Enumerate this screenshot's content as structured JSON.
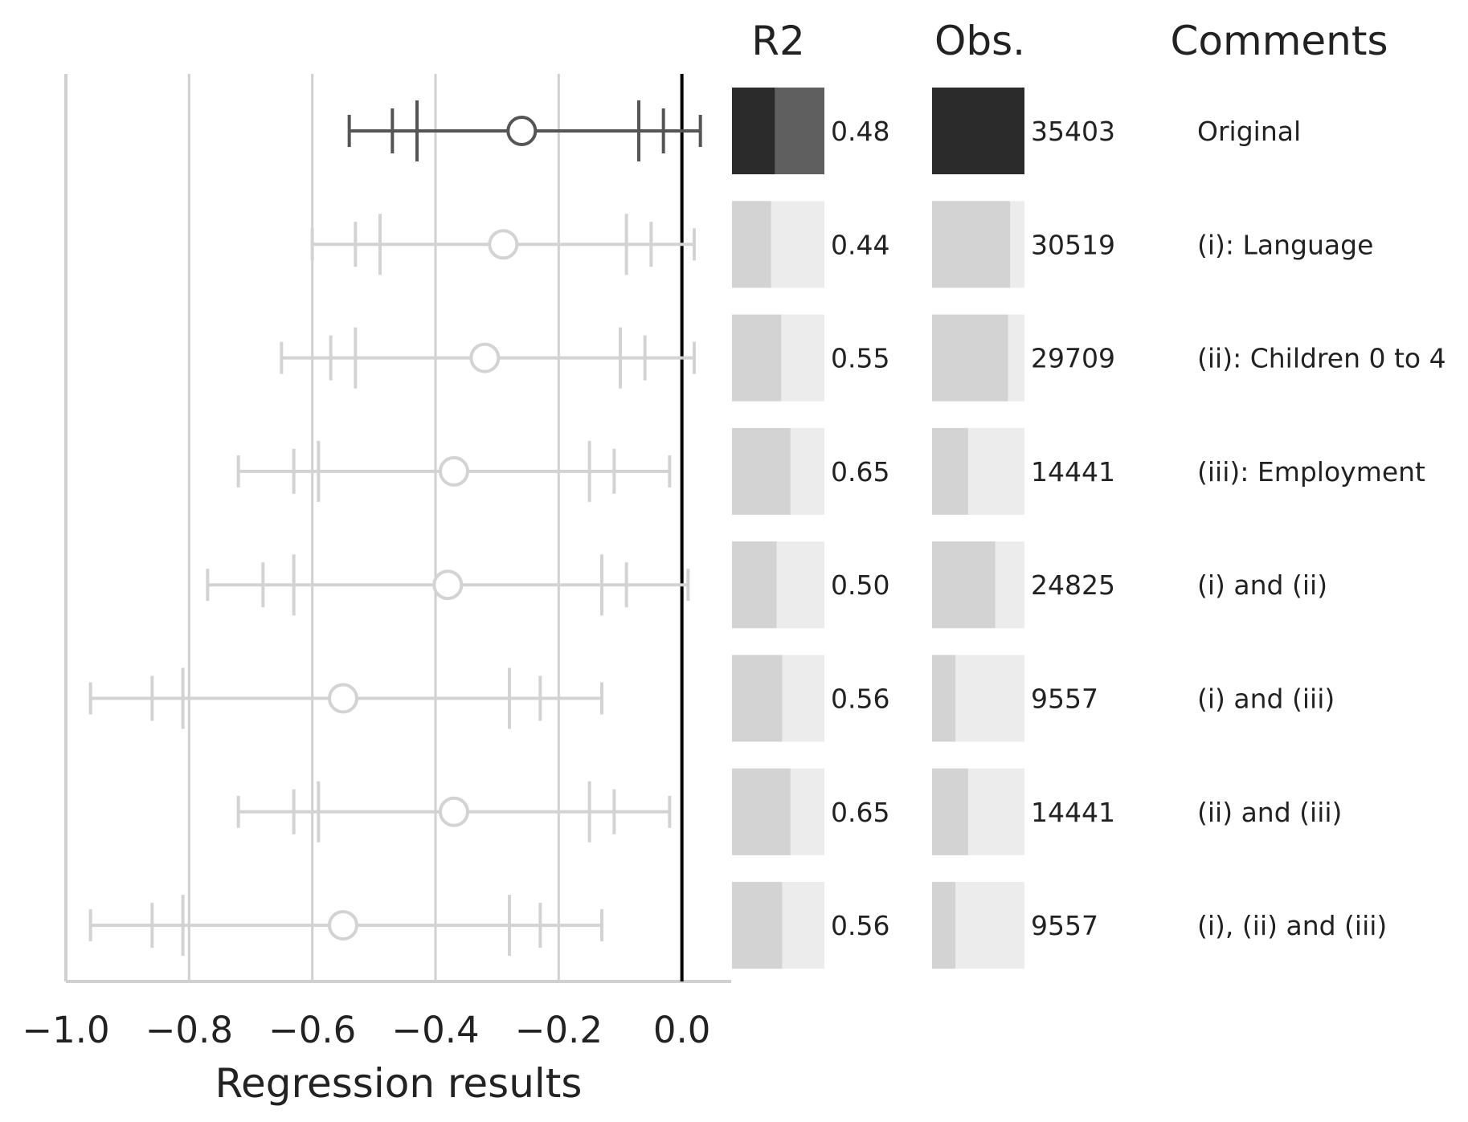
{
  "chart_data": {
    "type": "forest",
    "xlabel": "Regression results",
    "xlim": [
      -1.0,
      0.08
    ],
    "x_ticks": [
      -1.0,
      -0.8,
      -0.6,
      -0.4,
      -0.2,
      0.0
    ],
    "x_tick_labels": [
      "−1.0",
      "−0.8",
      "−0.6",
      "−0.4",
      "−0.2",
      "0.0"
    ],
    "reference_line": 0.0,
    "vertical_grid": true,
    "columns": {
      "r2_header": "R2",
      "obs_header": "Obs.",
      "comments_header": "Comments"
    },
    "obs_max": 35403,
    "rows": [
      {
        "comment": "Original",
        "estimate": -0.26,
        "ci_inner": [
          -0.43,
          -0.07
        ],
        "ci_mid": [
          -0.47,
          -0.03
        ],
        "ci_outer": [
          -0.54,
          0.03
        ],
        "r2": 0.48,
        "r2_label": "0.48",
        "obs": 35403,
        "obs_label": "35403",
        "highlight": true
      },
      {
        "comment": "(i): Language",
        "estimate": -0.29,
        "ci_inner": [
          -0.49,
          -0.09
        ],
        "ci_mid": [
          -0.53,
          -0.05
        ],
        "ci_outer": [
          -0.6,
          0.02
        ],
        "r2": 0.44,
        "r2_label": "0.44",
        "obs": 30519,
        "obs_label": "30519",
        "highlight": false
      },
      {
        "comment": "(ii): Children 0 to 4",
        "estimate": -0.32,
        "ci_inner": [
          -0.53,
          -0.1
        ],
        "ci_mid": [
          -0.57,
          -0.06
        ],
        "ci_outer": [
          -0.65,
          0.02
        ],
        "r2": 0.55,
        "r2_label": "0.55",
        "obs": 29709,
        "obs_label": "29709",
        "highlight": false
      },
      {
        "comment": "(iii): Employment",
        "estimate": -0.37,
        "ci_inner": [
          -0.59,
          -0.15
        ],
        "ci_mid": [
          -0.63,
          -0.11
        ],
        "ci_outer": [
          -0.72,
          -0.02
        ],
        "r2": 0.65,
        "r2_label": "0.65",
        "obs": 14441,
        "obs_label": "14441",
        "highlight": false
      },
      {
        "comment": "(i) and (ii)",
        "estimate": -0.38,
        "ci_inner": [
          -0.63,
          -0.13
        ],
        "ci_mid": [
          -0.68,
          -0.09
        ],
        "ci_outer": [
          -0.77,
          0.01
        ],
        "r2": 0.5,
        "r2_label": "0.50",
        "obs": 24825,
        "obs_label": "24825",
        "highlight": false
      },
      {
        "comment": "(i) and (iii)",
        "estimate": -0.55,
        "ci_inner": [
          -0.81,
          -0.28
        ],
        "ci_mid": [
          -0.86,
          -0.23
        ],
        "ci_outer": [
          -0.96,
          -0.13
        ],
        "r2": 0.56,
        "r2_label": "0.56",
        "obs": 9557,
        "obs_label": "9557",
        "highlight": false
      },
      {
        "comment": "(ii) and (iii)",
        "estimate": -0.37,
        "ci_inner": [
          -0.59,
          -0.15
        ],
        "ci_mid": [
          -0.63,
          -0.11
        ],
        "ci_outer": [
          -0.72,
          -0.02
        ],
        "r2": 0.65,
        "r2_label": "0.65",
        "obs": 14441,
        "obs_label": "14441",
        "highlight": false
      },
      {
        "comment": "(i), (ii) and (iii)",
        "estimate": -0.55,
        "ci_inner": [
          -0.81,
          -0.28
        ],
        "ci_mid": [
          -0.86,
          -0.23
        ],
        "ci_outer": [
          -0.96,
          -0.13
        ],
        "r2": 0.56,
        "r2_label": "0.56",
        "obs": 9557,
        "obs_label": "9557",
        "highlight": false
      }
    ]
  },
  "colors": {
    "highlight_dark": "#2b2b2b",
    "highlight_mid": "#5f5f5f",
    "highlight_line": "#555555",
    "muted_bar": "#d3d3d3",
    "muted_bg": "#ececec",
    "muted_line": "#d3d3d3",
    "grid": "#d0d0d0",
    "reference": "#000000",
    "text": "#222222"
  }
}
